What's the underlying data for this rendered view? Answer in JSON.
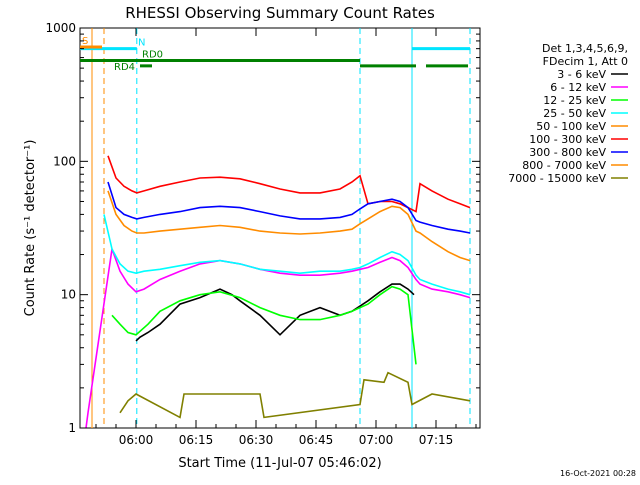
{
  "chart_data": {
    "type": "line",
    "title": "RHESSI Observing Summary Count Rates",
    "xlabel": "Start Time (11-Jul-07 05:46:02)",
    "ylabel": "Count Rate (s⁻¹ detector⁻¹)",
    "y_scale": "log",
    "ylim": [
      1,
      1000
    ],
    "x_unit": "minutes after 05:46:02",
    "xlim": [
      0,
      100
    ],
    "x_ticks": [
      {
        "t": 14.0,
        "label": "06:00"
      },
      {
        "t": 29.0,
        "label": "06:15"
      },
      {
        "t": 44.0,
        "label": "06:30"
      },
      {
        "t": 59.0,
        "label": "06:45"
      },
      {
        "t": 74.0,
        "label": "07:00"
      },
      {
        "t": 89.0,
        "label": "07:15"
      }
    ],
    "y_ticks": [
      {
        "v": 1,
        "label": "1"
      },
      {
        "v": 10,
        "label": "10"
      },
      {
        "v": 100,
        "label": "100"
      },
      {
        "v": 1000,
        "label": "1000"
      }
    ],
    "grid": false,
    "legend_placement": "right",
    "legend_header": [
      "Det 1,3,4,5,6,9,",
      "FDecim 1, Att 0"
    ],
    "footer_date": "16-Oct-2021 00:28",
    "vertical_lines": [
      {
        "t": 14.2,
        "color": "#00e5ff",
        "style": "dashed"
      },
      {
        "t": 70.0,
        "color": "#00e5ff",
        "style": "dashed"
      },
      {
        "t": 83.0,
        "color": "#00e5ff",
        "style": "solid"
      },
      {
        "t": 97.5,
        "color": "#00e5ff",
        "style": "dashed"
      },
      {
        "t": 3.0,
        "color": "#ff8c00",
        "style": "solid"
      },
      {
        "t": 6.0,
        "color": "#ff8c00",
        "style": "dashed"
      }
    ],
    "flag_bars": [
      {
        "label": "N",
        "color": "#00e5ff",
        "y": 700,
        "segments": [
          [
            0,
            14.2
          ],
          [
            83,
            97.5
          ]
        ]
      },
      {
        "label": "RD0",
        "color": "#008000",
        "y": 570,
        "segments": [
          [
            0,
            70
          ]
        ]
      },
      {
        "label": "RD4",
        "color": "#008000",
        "y": 520,
        "segments": [
          [
            15,
            18
          ],
          [
            70,
            84
          ],
          [
            86.5,
            97
          ]
        ]
      },
      {
        "label": "S",
        "color": "#ff8c00",
        "y": 720,
        "segments": [
          [
            0,
            5.5
          ]
        ]
      }
    ],
    "series": [
      {
        "name": "3 - 6 keV",
        "color": "#000000",
        "x": [
          14,
          15,
          17,
          20,
          25,
          30,
          35,
          38,
          40,
          45,
          50,
          55,
          60,
          65,
          68,
          72,
          75,
          78,
          80,
          82,
          83.5
        ],
        "y": [
          4.5,
          4.8,
          5.2,
          6,
          8.5,
          9.5,
          11,
          10,
          9,
          7,
          5,
          7,
          8,
          7,
          7.5,
          9,
          10.5,
          12,
          12,
          11,
          10
        ]
      },
      {
        "name": "6 - 12 keV",
        "color": "#ff00ff",
        "x": [
          1.5,
          2,
          8,
          10,
          12,
          14,
          16,
          20,
          25,
          30,
          35,
          40,
          45,
          50,
          55,
          60,
          65,
          68,
          70,
          72,
          75,
          78,
          80,
          82,
          84,
          85,
          88,
          92,
          95,
          97.5
        ],
        "y": [
          1,
          1.3,
          22,
          15,
          12,
          10.5,
          11,
          13,
          15,
          17,
          18,
          17,
          15.5,
          14.5,
          14,
          14,
          14.5,
          15,
          15.5,
          16,
          17.5,
          19,
          18,
          16,
          13,
          12,
          11,
          10.5,
          10,
          9.5
        ]
      },
      {
        "name": "12 - 25 keV",
        "color": "#00ff00",
        "x": [
          8,
          10,
          12,
          14,
          17,
          20,
          25,
          30,
          35,
          40,
          45,
          50,
          55,
          60,
          65,
          68,
          70,
          72,
          75,
          78,
          80,
          82,
          84
        ],
        "y": [
          7,
          6,
          5.2,
          5,
          6,
          7.5,
          9,
          10,
          10.5,
          9.5,
          8,
          7,
          6.5,
          6.5,
          7,
          7.5,
          8,
          8.5,
          10,
          11.5,
          11,
          10,
          3
        ]
      },
      {
        "name": "25 - 50 keV",
        "color": "#00ffff",
        "x": [
          6,
          8,
          10,
          12,
          14,
          16,
          20,
          25,
          30,
          35,
          40,
          45,
          50,
          55,
          60,
          65,
          68,
          70,
          72,
          75,
          78,
          80,
          82,
          84,
          85,
          88,
          92,
          95,
          97.5
        ],
        "y": [
          40,
          22,
          17,
          15,
          14.5,
          15,
          15.5,
          16.5,
          17.5,
          18,
          17,
          15.5,
          15,
          14.5,
          15,
          15,
          15.5,
          16,
          17,
          19,
          21,
          20,
          18,
          14,
          13,
          12,
          11,
          10.5,
          10
        ]
      },
      {
        "name": "50 - 100 keV",
        "color": "#ff8c00",
        "x": [
          7,
          9,
          11,
          13,
          14.2,
          16,
          20,
          25,
          30,
          35,
          40,
          45,
          50,
          55,
          60,
          65,
          68,
          70,
          72,
          75,
          78,
          80,
          82,
          84,
          85,
          88,
          92,
          95,
          97.5
        ],
        "y": [
          60,
          40,
          33,
          30,
          29,
          29,
          30,
          31,
          32,
          33,
          32,
          30,
          29,
          28.5,
          29,
          30,
          31,
          34,
          37,
          42,
          46,
          45,
          40,
          30,
          29,
          25,
          21,
          19,
          18
        ]
      },
      {
        "name": "100 - 300 keV",
        "color": "#ff0000",
        "x": [
          7,
          9,
          11,
          13,
          14.2,
          16,
          20,
          25,
          30,
          35,
          40,
          45,
          50,
          55,
          60,
          65,
          68,
          70,
          72,
          75,
          78,
          80,
          82,
          84,
          85,
          88,
          92,
          95,
          97.5
        ],
        "y": [
          110,
          75,
          65,
          60,
          58,
          60,
          65,
          70,
          75,
          76,
          74,
          68,
          62,
          58,
          58,
          62,
          70,
          78,
          48,
          50,
          50,
          48,
          45,
          42,
          68,
          60,
          52,
          48,
          45
        ]
      },
      {
        "name": "300 - 800 keV",
        "color": "#0000ff",
        "x": [
          7,
          9,
          11,
          13,
          14.2,
          16,
          20,
          25,
          30,
          35,
          40,
          45,
          50,
          55,
          60,
          65,
          68,
          70,
          72,
          75,
          78,
          80,
          82,
          84,
          85,
          88,
          92,
          95,
          97.5
        ],
        "y": [
          70,
          45,
          40,
          38,
          37,
          38,
          40,
          42,
          45,
          46,
          45,
          42,
          39,
          37,
          37,
          38,
          40,
          44,
          48,
          50,
          52,
          50,
          45,
          36,
          35,
          33,
          31,
          30,
          29
        ]
      },
      {
        "name": "800 - 7000 keV",
        "color": "#ff8c00",
        "x": [
          3,
          3.01
        ],
        "y": [
          1,
          1.01
        ]
      },
      {
        "name": "7000 - 15000 keV",
        "color": "#808000",
        "x": [
          10,
          12,
          14,
          25,
          26,
          45,
          46,
          70,
          71,
          76,
          77,
          82,
          83,
          88,
          97.5
        ],
        "y": [
          1.3,
          1.6,
          1.8,
          1.2,
          1.8,
          1.8,
          1.2,
          1.5,
          2.3,
          2.2,
          2.6,
          2.2,
          1.5,
          1.8,
          1.6
        ]
      }
    ]
  }
}
